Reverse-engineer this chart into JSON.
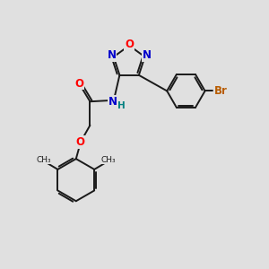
{
  "bg_color": "#e0e0e0",
  "bond_color": "#1a1a1a",
  "bond_width": 1.4,
  "atom_colors": {
    "O": "#ff0000",
    "N": "#0000cc",
    "H": "#008080",
    "Br": "#b85c00",
    "C": "#1a1a1a"
  },
  "font_size": 8.5
}
